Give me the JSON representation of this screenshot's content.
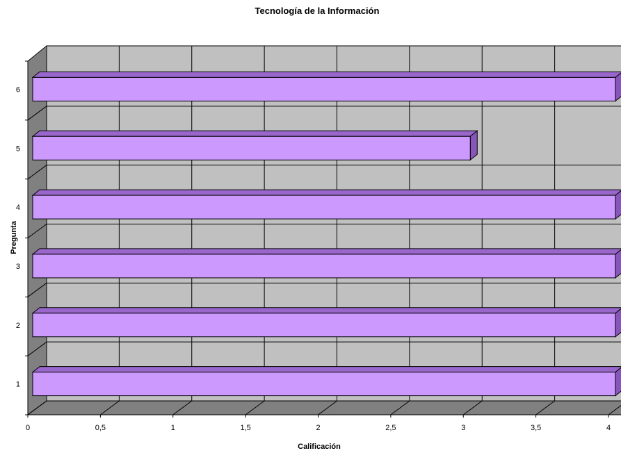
{
  "chart_data": {
    "type": "bar",
    "orientation": "horizontal",
    "three_d": true,
    "title": "Tecnología de la Información",
    "xlabel": "Calificación",
    "ylabel": "Pregunta",
    "categories": [
      "1",
      "2",
      "3",
      "4",
      "5",
      "6"
    ],
    "series": [
      {
        "values": [
          4,
          4,
          4,
          4,
          3,
          4
        ]
      }
    ],
    "xlim": [
      0,
      4
    ],
    "x_ticks": [
      0,
      0.5,
      1,
      1.5,
      2,
      2.5,
      3,
      3.5,
      4
    ],
    "x_tick_labels": [
      "0",
      "0,5",
      "1",
      "1,5",
      "2",
      "2,5",
      "3",
      "3,5",
      "4"
    ],
    "grid": true,
    "legend": "none",
    "colors": {
      "bar_front": "#cc99ff",
      "bar_top": "#9966cc",
      "bar_side": "#8855bb",
      "back_wall": "#c0c0c0",
      "side_wall": "#808080",
      "floor": "#808080"
    }
  }
}
